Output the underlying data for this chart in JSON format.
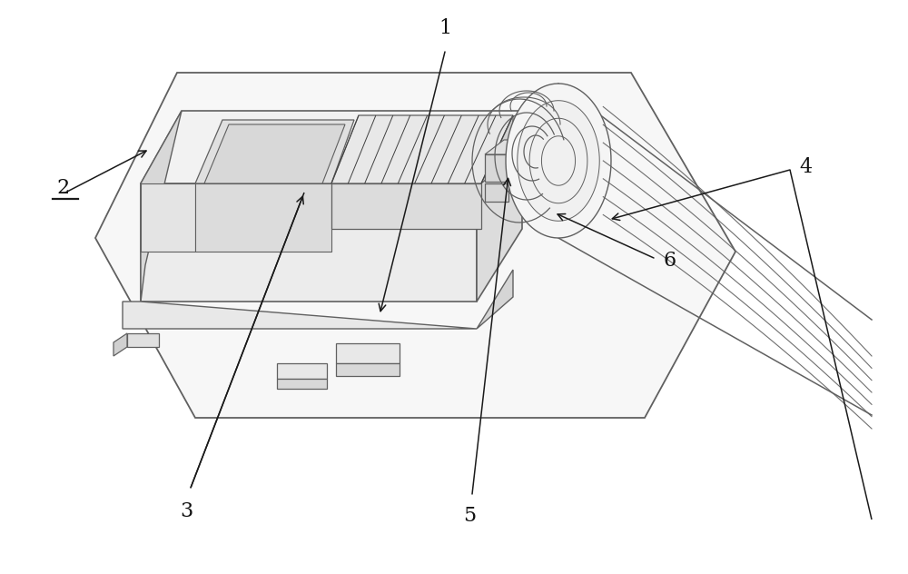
{
  "background_color": "#ffffff",
  "lc": "#606060",
  "lc2": "#404040",
  "lc_dark": "#1a1a1a",
  "figsize": [
    10.0,
    6.32
  ],
  "dpi": 100,
  "label_fontsize": 16,
  "label_color": "#111111"
}
